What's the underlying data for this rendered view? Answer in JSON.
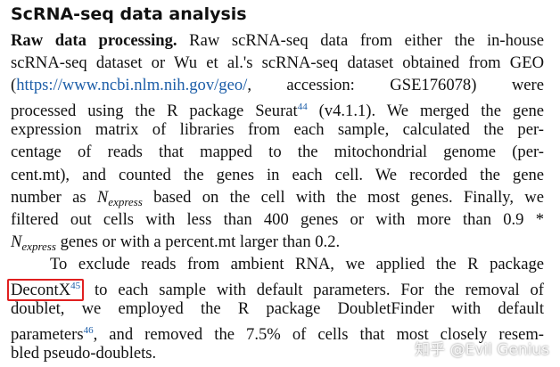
{
  "heading": "ScRNA-seq data analysis",
  "paragraphs": [
    {
      "lines": [
        [
          "Raw data processing.",
          " Raw scRNA-seq data from either the in-house"
        ],
        [
          "scRNA-seq dataset or Wu et al.'s scRNA-seq dataset obtained from GEO"
        ],
        [
          "(",
          "https://www.ncbi.nlm.nih.gov/geo/",
          ",  accession:  GSE176078)  were"
        ],
        [
          "processed using the R package Seurat",
          "44",
          " (v4.1.1). We merged the gene"
        ],
        [
          "expression matrix of libraries from each sample, calculated the per-"
        ],
        [
          "centage of reads that mapped to the mitochondrial genome (per-"
        ],
        [
          "cent.mt), and counted the genes in each cell. We recorded the gene"
        ],
        [
          "number as ",
          "N",
          "express",
          " based on the cell with the most genes. Finally, we"
        ],
        [
          "filtered out cells with less than 400 genes or with more than 0.9 *"
        ],
        [
          "N",
          "express",
          " genes or with a percent.mt larger than 0.2."
        ]
      ]
    },
    {
      "lines": [
        [
          "To exclude reads from ambient RNA, we applied the R package"
        ],
        [
          "DecontX",
          "45",
          " to each sample with default parameters. For the removal of"
        ],
        [
          "doublet, we employed the R package DoubletFinder with default"
        ],
        [
          "parameters",
          "46",
          ", and removed the 7.5% of cells that most closely resem-"
        ],
        [
          "bled pseudo-doublets."
        ]
      ]
    }
  ],
  "watermark": "知乎 @Evil Genius"
}
